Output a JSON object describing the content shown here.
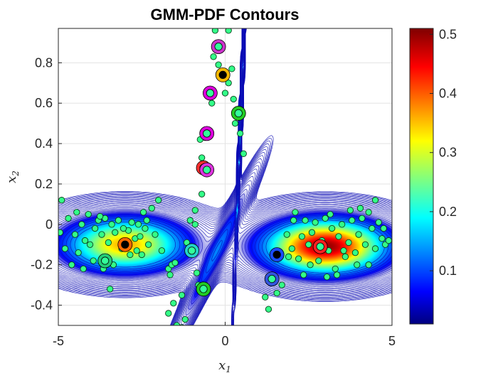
{
  "chart_data": {
    "type": "contour",
    "title": "GMM-PDF Contours",
    "xlabel": {
      "base": "x",
      "sub": "1"
    },
    "ylabel": {
      "base": "x",
      "sub": "2"
    },
    "xlim": [
      -5,
      5
    ],
    "ylim": [
      -0.5,
      0.97
    ],
    "x_ticks": [
      -5,
      0,
      5
    ],
    "x_tick_labels": [
      "-5",
      "0",
      "5"
    ],
    "y_ticks": [
      -0.4,
      -0.2,
      0,
      0.2,
      0.4,
      0.6,
      0.8
    ],
    "y_tick_labels": [
      "-0.4",
      "-0.2",
      "0",
      "0.2",
      "0.4",
      "0.6",
      "0.8"
    ],
    "grid": true,
    "colormap": "jet",
    "colorbar": {
      "lim": [
        0.01,
        0.51
      ],
      "ticks": [
        0.1,
        0.2,
        0.3,
        0.4,
        0.5
      ],
      "tick_labels": [
        "0.1",
        "0.2",
        "0.3",
        "0.4",
        "0.5"
      ]
    },
    "components": [
      {
        "mean": [
          -3.0,
          -0.1
        ],
        "sx": 1.15,
        "sy": 0.085,
        "rho": 0,
        "peak": 0.36
      },
      {
        "mean": [
          3.0,
          -0.11
        ],
        "sx": 1.15,
        "sy": 0.085,
        "rho": 0,
        "peak": 0.5
      },
      {
        "mean": [
          0.45,
          0.45
        ],
        "sx": 0.09,
        "sy": 0.38,
        "rho": 0.98,
        "peak": 0.2
      },
      {
        "mean": [
          -0.3,
          -0.15
        ],
        "sx": 0.65,
        "sy": 0.22,
        "rho": 0.97,
        "peak": 0.11
      }
    ],
    "centroids": [
      {
        "x": -3.0,
        "y": -0.1,
        "inner": "#000000",
        "ring": "#ff6a00"
      },
      {
        "x": -3.6,
        "y": -0.18,
        "inner": "#33ff99",
        "ring": "#22cc77"
      },
      {
        "x": -1.0,
        "y": -0.13,
        "inner": "#33ff99",
        "ring": "#22d4c8"
      },
      {
        "x": -0.65,
        "y": 0.28,
        "inner": "#33ff99",
        "ring": "#ff3030"
      },
      {
        "x": -0.55,
        "y": 0.27,
        "inner": "#33ff99",
        "ring": "#dd33dd"
      },
      {
        "x": -0.55,
        "y": 0.45,
        "inner": "#33ff99",
        "ring": "#dd00dd"
      },
      {
        "x": -0.45,
        "y": 0.65,
        "inner": "#33ff99",
        "ring": "#dd00dd"
      },
      {
        "x": -0.2,
        "y": 0.88,
        "inner": "#33ff99",
        "ring": "#cc33cc"
      },
      {
        "x": -0.07,
        "y": 0.74,
        "inner": "#000000",
        "ring": "#f5b800"
      },
      {
        "x": 0.4,
        "y": 0.55,
        "inner": "#33ff99",
        "ring": "#22cc22"
      },
      {
        "x": -0.65,
        "y": -0.32,
        "inner": "#33ff99",
        "ring": "#22cc22"
      },
      {
        "x": 1.55,
        "y": -0.15,
        "inner": "#000000",
        "ring": "#1a4cff"
      },
      {
        "x": 1.4,
        "y": -0.27,
        "inner": "#33ff99",
        "ring": "#3355dd"
      },
      {
        "x": 2.85,
        "y": -0.11,
        "inner": "#33ff99",
        "ring": "#ff2020"
      }
    ],
    "points": [
      [
        -4.9,
        0.12
      ],
      [
        -4.7,
        0.03
      ],
      [
        -4.5,
        -0.05
      ],
      [
        -4.3,
        0.0
      ],
      [
        -4.2,
        -0.08
      ],
      [
        -4.4,
        -0.14
      ],
      [
        -4.6,
        -0.2
      ],
      [
        -4.8,
        -0.12
      ],
      [
        -4.95,
        -0.04
      ],
      [
        -4.1,
        0.05
      ],
      [
        -3.9,
        -0.02
      ],
      [
        -3.8,
        0.02
      ],
      [
        -3.7,
        -0.05
      ],
      [
        -3.6,
        0.03
      ],
      [
        -3.5,
        -0.09
      ],
      [
        -3.4,
        0.0
      ],
      [
        -3.3,
        -0.04
      ],
      [
        -3.2,
        0.02
      ],
      [
        -3.1,
        -0.12
      ],
      [
        -2.9,
        -0.03
      ],
      [
        -2.8,
        0.01
      ],
      [
        -2.7,
        -0.07
      ],
      [
        -2.6,
        0.0
      ],
      [
        -2.5,
        -0.15
      ],
      [
        -2.4,
        -0.02
      ],
      [
        -2.3,
        -0.1
      ],
      [
        -2.2,
        0.08
      ],
      [
        -2.1,
        -0.05
      ],
      [
        -2.0,
        0.12
      ],
      [
        -1.9,
        -0.13
      ],
      [
        -2.45,
        0.06
      ],
      [
        -2.85,
        -0.15
      ],
      [
        -3.65,
        -0.22
      ],
      [
        -3.35,
        -0.2
      ],
      [
        -2.65,
        -0.13
      ],
      [
        -3.95,
        -0.18
      ],
      [
        -4.25,
        -0.22
      ],
      [
        -3.45,
        -0.32
      ],
      [
        -3.05,
        -0.02
      ],
      [
        -2.35,
        0.02
      ],
      [
        -2.55,
        -0.06
      ],
      [
        -3.75,
        0.04
      ],
      [
        -4.05,
        -0.1
      ],
      [
        -4.45,
        0.06
      ],
      [
        -1.7,
        -0.22
      ],
      [
        -1.6,
        -0.2
      ],
      [
        -1.5,
        -0.19
      ],
      [
        -1.65,
        -0.25
      ],
      [
        -1.15,
        -0.09
      ],
      [
        -1.0,
        -0.14
      ],
      [
        -1.05,
        0.02
      ],
      [
        -0.9,
        0.0
      ],
      [
        -0.85,
        -0.24
      ],
      [
        -0.8,
        -0.3
      ],
      [
        -1.3,
        -0.35
      ],
      [
        -1.55,
        -0.39
      ],
      [
        -1.7,
        -0.44
      ],
      [
        -1.45,
        -0.5
      ],
      [
        -1.3,
        -0.51
      ],
      [
        -1.2,
        -0.47
      ],
      [
        -0.9,
        0.07
      ],
      [
        -0.7,
        0.15
      ],
      [
        -0.3,
        0.96
      ],
      [
        0.1,
        0.96
      ],
      [
        0.2,
        0.77
      ],
      [
        -0.2,
        0.79
      ],
      [
        0.1,
        0.7
      ],
      [
        0.25,
        0.62
      ],
      [
        0.45,
        0.45
      ],
      [
        0.55,
        0.35
      ],
      [
        0.3,
        0.5
      ],
      [
        -0.7,
        0.33
      ],
      [
        -0.6,
        0.43
      ],
      [
        -0.4,
        0.6
      ],
      [
        -0.35,
        0.83
      ],
      [
        0.0,
        0.65
      ],
      [
        -0.75,
        0.42
      ],
      [
        1.2,
        -0.36
      ],
      [
        1.3,
        -0.42
      ],
      [
        1.55,
        -0.34
      ],
      [
        1.7,
        -0.3
      ],
      [
        1.85,
        -0.05
      ],
      [
        2.0,
        -0.12
      ],
      [
        2.1,
        0.06
      ],
      [
        2.2,
        -0.17
      ],
      [
        2.3,
        -0.06
      ],
      [
        2.4,
        0.02
      ],
      [
        2.5,
        -0.1
      ],
      [
        2.6,
        -0.04
      ],
      [
        2.7,
        0.01
      ],
      [
        2.8,
        -0.18
      ],
      [
        2.9,
        -0.08
      ],
      [
        3.0,
        0.03
      ],
      [
        3.1,
        -0.13
      ],
      [
        3.2,
        -0.02
      ],
      [
        3.3,
        -0.22
      ],
      [
        3.4,
        -0.06
      ],
      [
        3.5,
        0.0
      ],
      [
        3.6,
        -0.16
      ],
      [
        3.7,
        -0.09
      ],
      [
        3.8,
        0.02
      ],
      [
        3.9,
        -0.14
      ],
      [
        4.0,
        -0.05
      ],
      [
        4.1,
        0.03
      ],
      [
        4.2,
        -0.1
      ],
      [
        4.3,
        0.06
      ],
      [
        4.4,
        -0.02
      ],
      [
        4.5,
        -0.12
      ],
      [
        4.6,
        0.01
      ],
      [
        4.7,
        -0.07
      ],
      [
        4.8,
        -0.1
      ],
      [
        4.9,
        -0.08
      ],
      [
        4.5,
        0.12
      ],
      [
        4.3,
        -0.2
      ],
      [
        3.05,
        -0.26
      ],
      [
        3.35,
        -0.25
      ],
      [
        2.55,
        -0.2
      ],
      [
        3.95,
        -0.2
      ],
      [
        2.35,
        -0.25
      ],
      [
        2.05,
        0.02
      ],
      [
        3.75,
        0.07
      ],
      [
        4.75,
        -0.02
      ],
      [
        3.15,
        0.05
      ],
      [
        1.9,
        -0.16
      ],
      [
        2.75,
        -0.1
      ],
      [
        3.55,
        -0.13
      ],
      [
        4.05,
        0.08
      ]
    ]
  }
}
